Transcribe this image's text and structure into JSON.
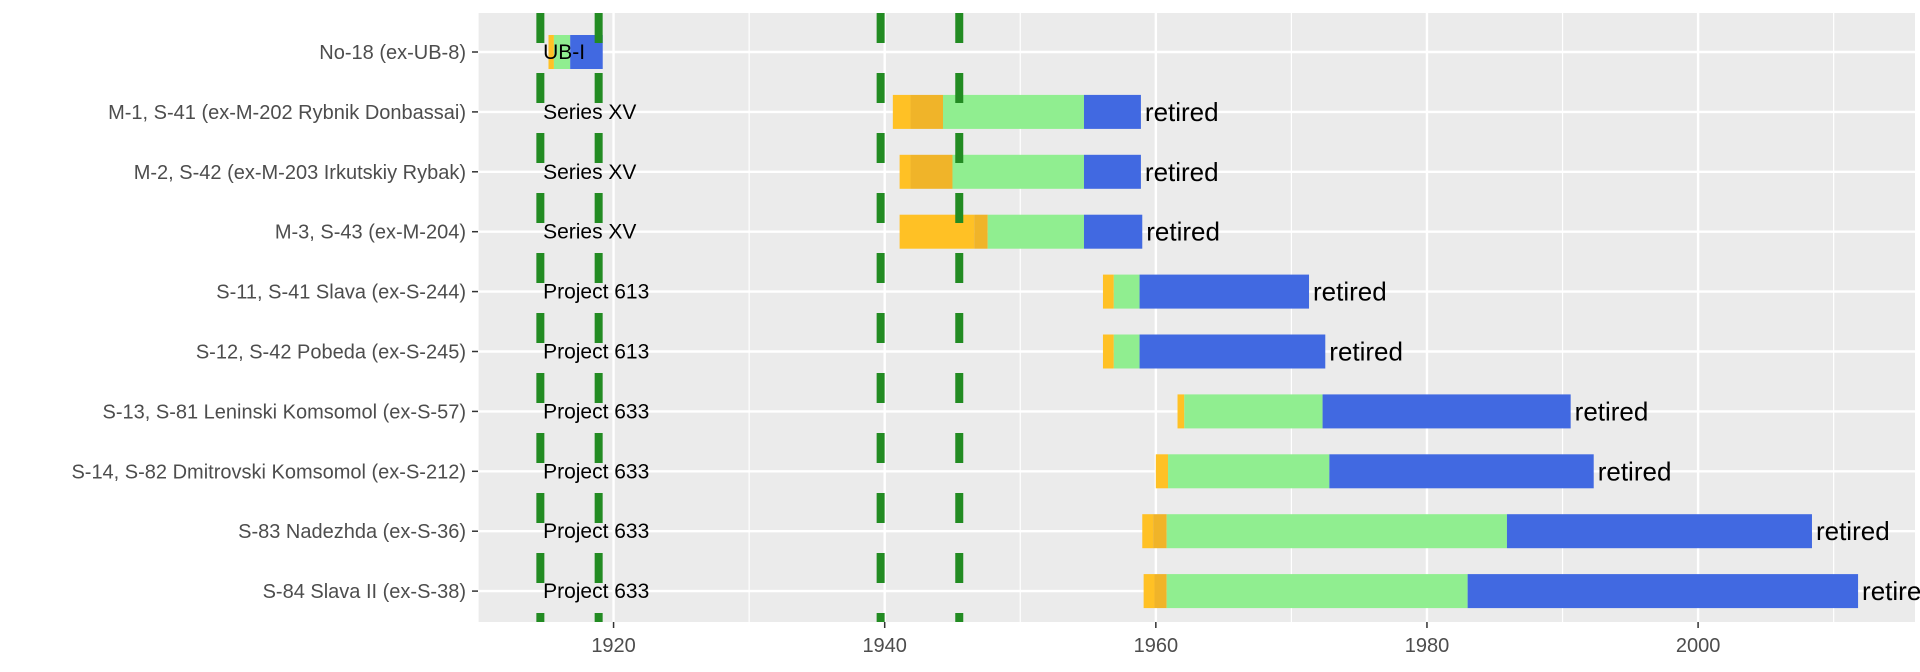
{
  "chart_data": {
    "type": "bar",
    "orientation": "horizontal-timeline",
    "title": "",
    "xlabel": "",
    "ylabel": "",
    "xlim": [
      1910,
      2016
    ],
    "x_ticks": [
      1920,
      1940,
      1960,
      1980,
      2000
    ],
    "grid": true,
    "reference_lines": [
      1914.6,
      1918.9,
      1939.7,
      1945.5
    ],
    "colors": {
      "ordered": "#FFC125",
      "laid_down": "#F0B429",
      "launched": "#FFC125",
      "in_service": "#90EE90",
      "later_service": "#4169E1",
      "reference_line": "#228B22",
      "panel": "#EBEBEB",
      "grid": "#FFFFFF"
    },
    "rows": [
      {
        "name": "No-18  (ex-UB-8)",
        "class": "UB-I",
        "status": "",
        "segments": [
          {
            "phase": "launched",
            "start": 1915.2,
            "end": 1915.6
          },
          {
            "phase": "in_service",
            "start": 1915.6,
            "end": 1916.8
          },
          {
            "phase": "later_service",
            "start": 1916.8,
            "end": 1919.2
          }
        ]
      },
      {
        "name": "M-1, S-41  (ex-M-202 Rybnik Donbassai)",
        "class": "Series XV",
        "status": "retired",
        "segments": [
          {
            "phase": "ordered",
            "start": 1940.6,
            "end": 1941.9
          },
          {
            "phase": "laid_down",
            "start": 1941.9,
            "end": 1944.3
          },
          {
            "phase": "in_service",
            "start": 1944.3,
            "end": 1954.7
          },
          {
            "phase": "later_service",
            "start": 1954.7,
            "end": 1958.9
          }
        ]
      },
      {
        "name": "M-2, S-42  (ex-M-203 Irkutskiy Rybak)",
        "class": "Series XV",
        "status": "retired",
        "segments": [
          {
            "phase": "ordered",
            "start": 1941.1,
            "end": 1941.9
          },
          {
            "phase": "laid_down",
            "start": 1941.9,
            "end": 1945.0
          },
          {
            "phase": "in_service",
            "start": 1945.0,
            "end": 1954.7
          },
          {
            "phase": "later_service",
            "start": 1954.7,
            "end": 1958.9
          }
        ]
      },
      {
        "name": "M-3, S-43  (ex-M-204)",
        "class": "Series XV",
        "status": "retired",
        "segments": [
          {
            "phase": "ordered",
            "start": 1941.1,
            "end": 1946.6
          },
          {
            "phase": "laid_down",
            "start": 1946.6,
            "end": 1947.6
          },
          {
            "phase": "in_service",
            "start": 1947.6,
            "end": 1954.7
          },
          {
            "phase": "later_service",
            "start": 1954.7,
            "end": 1959.0
          }
        ]
      },
      {
        "name": "S-11, S-41 Slava (ex-S-244)",
        "class": "Project 613",
        "status": "retired",
        "segments": [
          {
            "phase": "launched",
            "start": 1956.1,
            "end": 1956.9
          },
          {
            "phase": "in_service",
            "start": 1956.9,
            "end": 1958.8
          },
          {
            "phase": "later_service",
            "start": 1958.8,
            "end": 1971.3
          }
        ]
      },
      {
        "name": "S-12, S-42 Pobeda (ex-S-245)",
        "class": "Project 613",
        "status": "retired",
        "segments": [
          {
            "phase": "launched",
            "start": 1956.1,
            "end": 1956.9
          },
          {
            "phase": "in_service",
            "start": 1956.9,
            "end": 1958.8
          },
          {
            "phase": "later_service",
            "start": 1958.8,
            "end": 1972.5
          }
        ]
      },
      {
        "name": "S-13, S-81 Leninski Komsomol (ex-S-57)",
        "class": "Project 633",
        "status": "retired",
        "segments": [
          {
            "phase": "launched",
            "start": 1961.6,
            "end": 1962.1
          },
          {
            "phase": "in_service",
            "start": 1962.1,
            "end": 1972.3
          },
          {
            "phase": "later_service",
            "start": 1972.3,
            "end": 1990.6
          }
        ]
      },
      {
        "name": "S-14, S-82 Dmitrovski Komsomol (ex-S-212)",
        "class": "Project 633",
        "status": "retired",
        "segments": [
          {
            "phase": "launched",
            "start": 1960.0,
            "end": 1960.9
          },
          {
            "phase": "in_service",
            "start": 1960.9,
            "end": 1972.8
          },
          {
            "phase": "later_service",
            "start": 1972.8,
            "end": 1992.3
          }
        ]
      },
      {
        "name": "S-83 Nadezhda (ex-S-36)",
        "class": "Project 633",
        "status": "retired",
        "segments": [
          {
            "phase": "ordered",
            "start": 1959.0,
            "end": 1959.8
          },
          {
            "phase": "laid_down",
            "start": 1959.8,
            "end": 1960.8
          },
          {
            "phase": "in_service",
            "start": 1960.8,
            "end": 1985.9
          },
          {
            "phase": "later_service",
            "start": 1985.9,
            "end": 2008.4
          }
        ]
      },
      {
        "name": "S-84 Slava II (ex-S-38)",
        "class": "Project 633",
        "status": "retire",
        "segments": [
          {
            "phase": "ordered",
            "start": 1959.1,
            "end": 1959.9
          },
          {
            "phase": "laid_down",
            "start": 1959.9,
            "end": 1960.8
          },
          {
            "phase": "in_service",
            "start": 1960.8,
            "end": 1983.0
          },
          {
            "phase": "later_service",
            "start": 1983.0,
            "end": 2011.8
          }
        ]
      }
    ]
  }
}
